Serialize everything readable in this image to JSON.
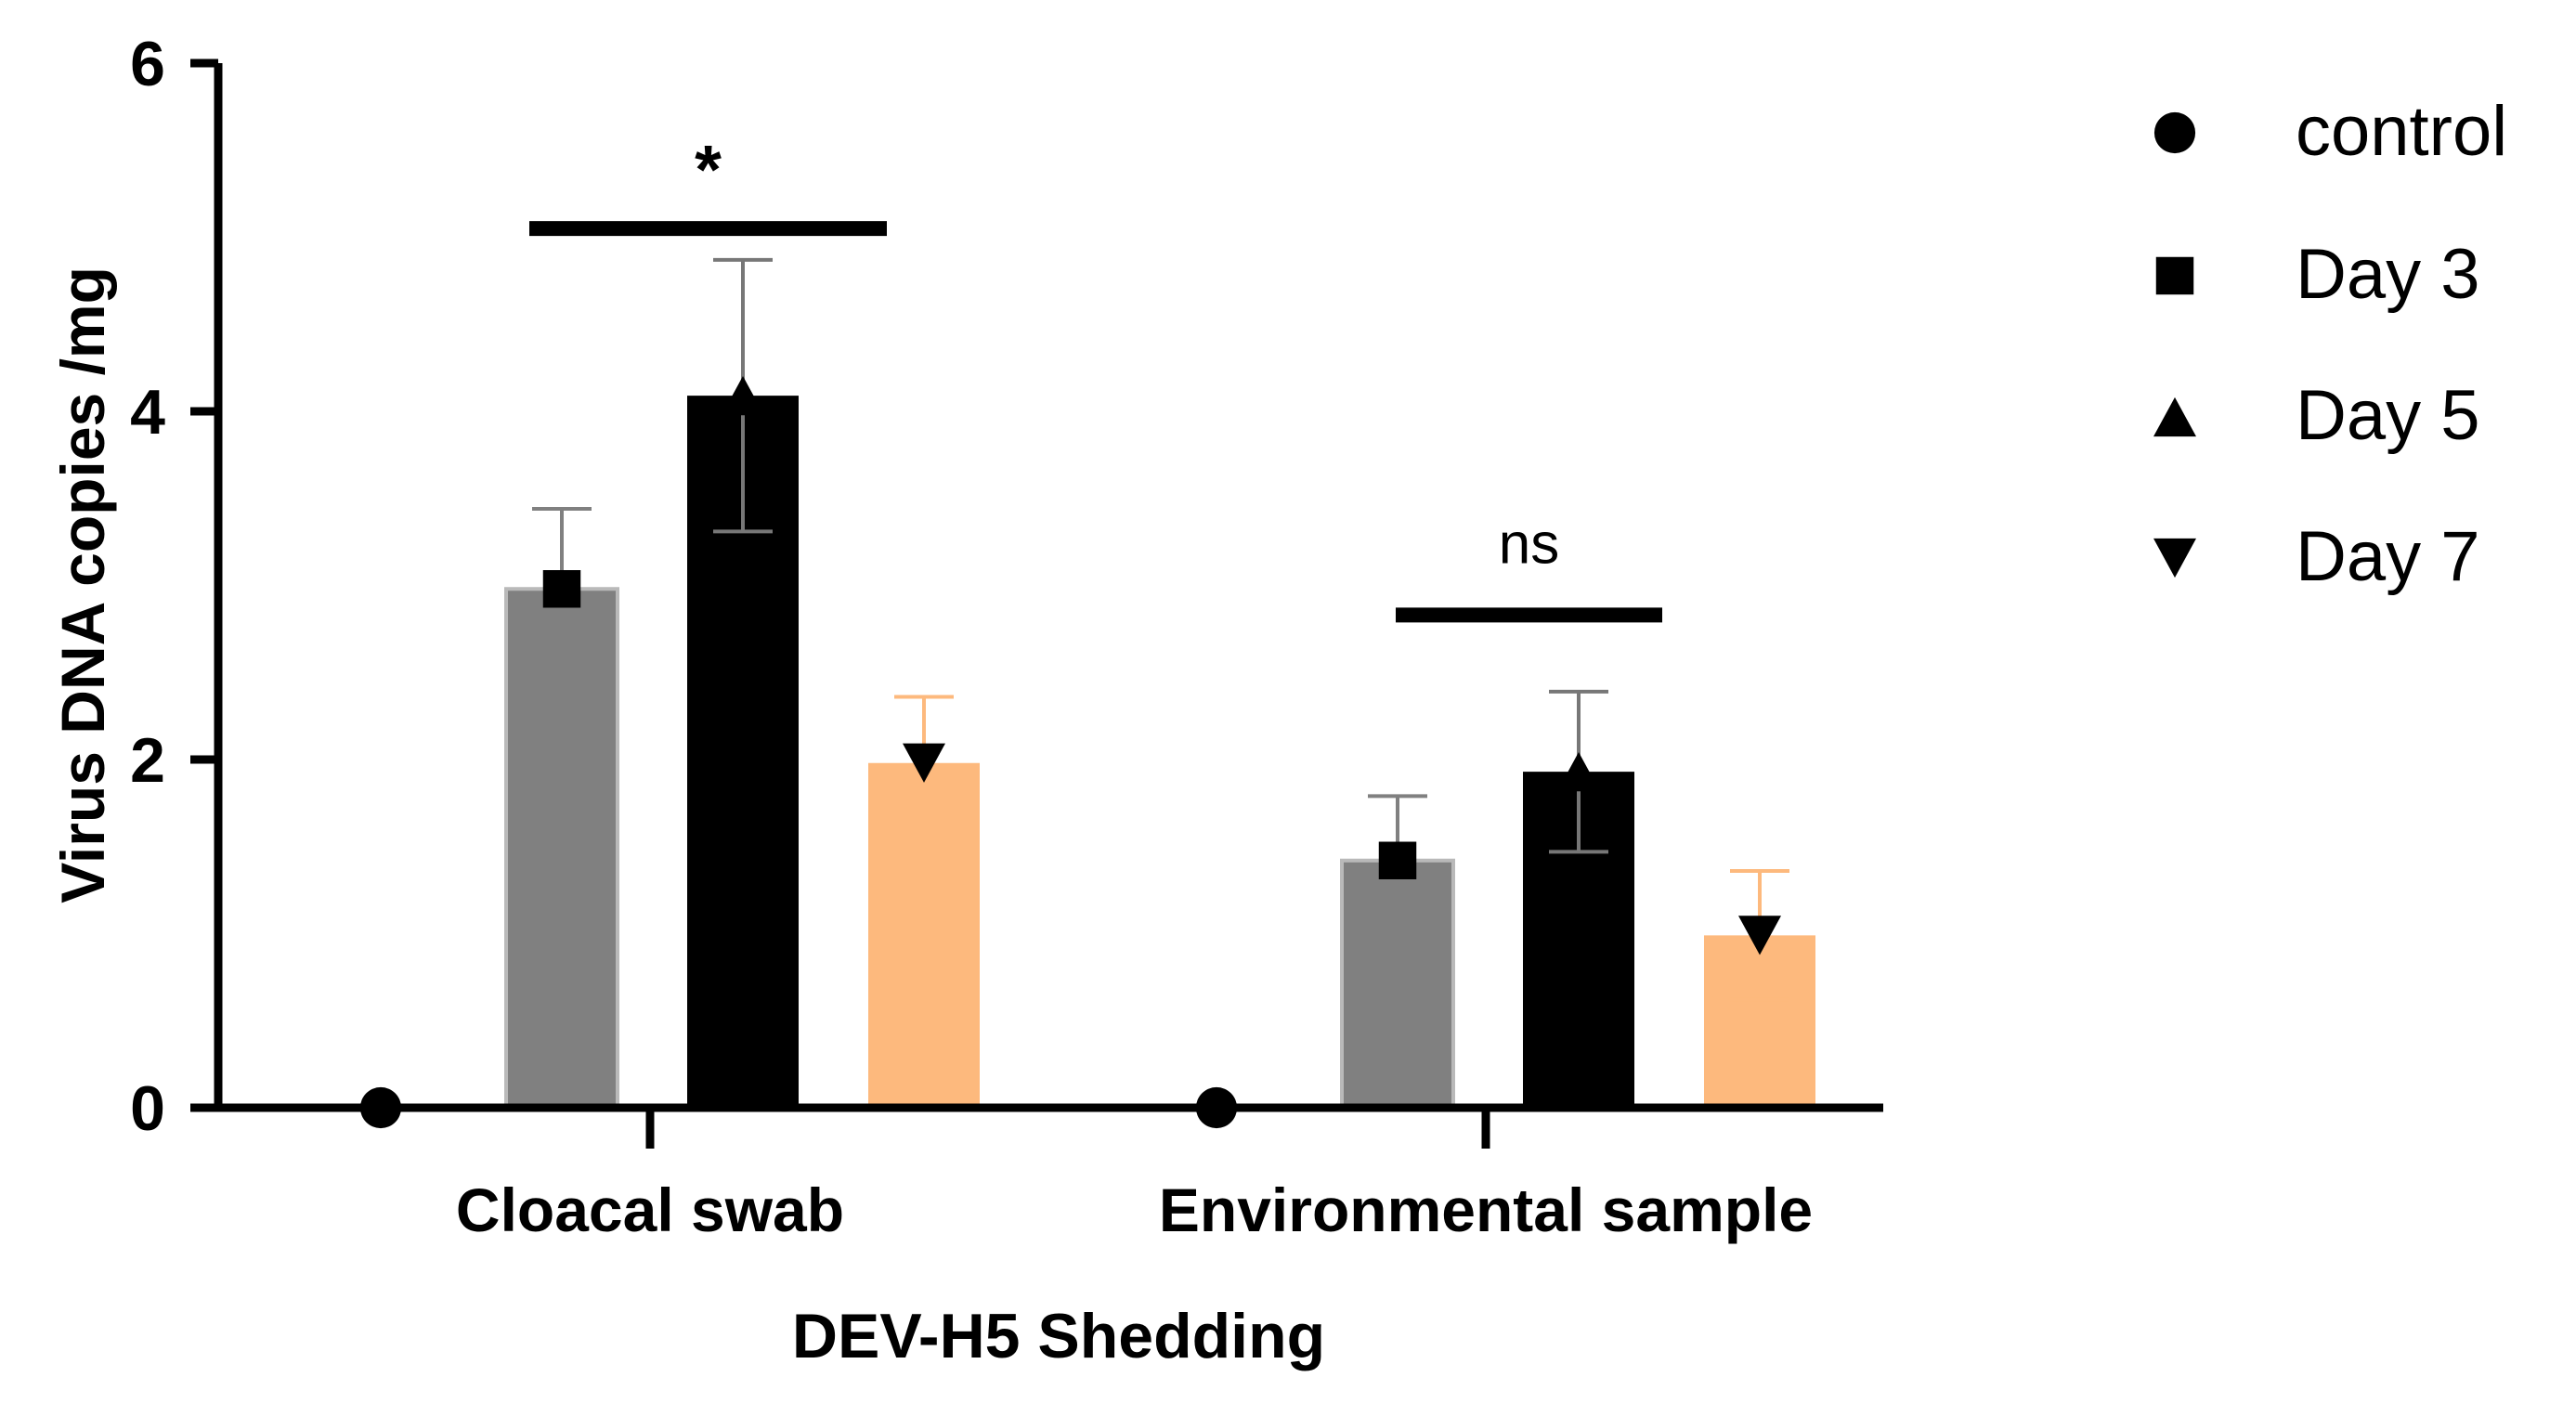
{
  "chart_data": {
    "type": "bar",
    "title": "",
    "xlabel": "DEV-H5 Shedding",
    "ylabel": "Virus DNA copies /mg",
    "ylim": [
      0,
      6
    ],
    "yticks": [
      "0",
      "2",
      "4",
      "6"
    ],
    "grid": false,
    "legend_position": "right",
    "categories": [
      "Cloacal swab",
      "Environmental sample"
    ],
    "series": [
      {
        "name": "control",
        "marker": "circle",
        "color": "#000000",
        "values": [
          0,
          0
        ],
        "errors": [
          0,
          0
        ]
      },
      {
        "name": "Day 3",
        "marker": "square",
        "color": "#808080",
        "values": [
          2.98,
          1.42
        ],
        "errors": [
          0.46,
          0.37
        ]
      },
      {
        "name": "Day 5",
        "marker": "triangle-up",
        "color": "#000000",
        "values": [
          4.09,
          1.93
        ],
        "errors": [
          0.78,
          0.46
        ]
      },
      {
        "name": "Day 7",
        "marker": "triangle-down",
        "color": "#FDB97D",
        "values": [
          1.98,
          0.99
        ],
        "errors": [
          0.38,
          0.37
        ]
      }
    ],
    "annotations": [
      {
        "label": "*",
        "category": "Cloacal swab",
        "y": 5.05
      },
      {
        "label": "ns",
        "category": "Environmental sample",
        "y": 2.83
      }
    ]
  }
}
